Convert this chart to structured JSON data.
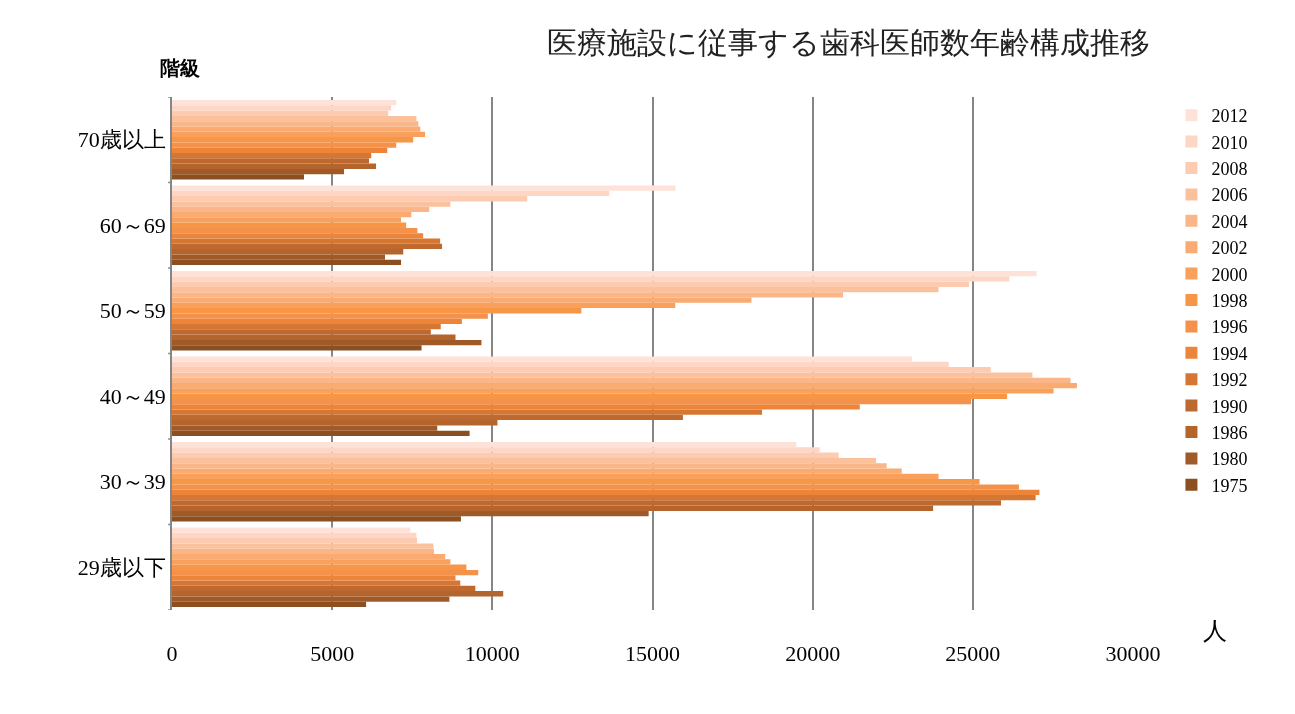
{
  "chart_data": {
    "type": "bar",
    "orientation": "horizontal",
    "title": "医療施設に従事する歯科医師数年齢構成推移",
    "xlabel": "人",
    "ylabel": "階級",
    "categories": [
      "70歳以上",
      "60～69",
      "50～59",
      "40～49",
      "30～39",
      "29歳以下"
    ],
    "series": [
      {
        "name": "1975",
        "color": "#8c4f22",
        "values": [
          4120,
          7150,
          7790,
          9290,
          9020,
          6060
        ]
      },
      {
        "name": "1980",
        "color": "#a05a28",
        "values": [
          5370,
          6650,
          9660,
          8280,
          14880,
          8660
        ]
      },
      {
        "name": "1986",
        "color": "#b4652e",
        "values": [
          6370,
          7220,
          8850,
          10160,
          23760,
          10340
        ]
      },
      {
        "name": "1990",
        "color": "#bd692f",
        "values": [
          6150,
          8430,
          8080,
          15950,
          25880,
          9470
        ]
      },
      {
        "name": "1992",
        "color": "#d57633",
        "values": [
          6220,
          8370,
          8390,
          18420,
          26960,
          9000
        ]
      },
      {
        "name": "1994",
        "color": "#ec853a",
        "values": [
          6720,
          7840,
          9050,
          21470,
          27080,
          8850
        ]
      },
      {
        "name": "1996",
        "color": "#f4924c",
        "values": [
          7000,
          7660,
          9860,
          24950,
          26440,
          9560
        ]
      },
      {
        "name": "1998",
        "color": "#f79646",
        "values": [
          7530,
          7310,
          12780,
          26070,
          25210,
          9190
        ]
      },
      {
        "name": "2000",
        "color": "#f8a05c",
        "values": [
          7900,
          7150,
          15710,
          27520,
          23930,
          8690
        ]
      },
      {
        "name": "2002",
        "color": "#f9ab72",
        "values": [
          7750,
          7470,
          18090,
          28250,
          22780,
          8530
        ]
      },
      {
        "name": "2004",
        "color": "#fab688",
        "values": [
          7690,
          8030,
          20950,
          28050,
          22310,
          8180
        ]
      },
      {
        "name": "2006",
        "color": "#fbc19d",
        "values": [
          7630,
          8690,
          23930,
          26860,
          21980,
          8160
        ]
      },
      {
        "name": "2008",
        "color": "#fccbb1",
        "values": [
          6750,
          11090,
          24880,
          25560,
          20810,
          7650
        ]
      },
      {
        "name": "2010",
        "color": "#fdd6c5",
        "values": [
          6840,
          13650,
          26140,
          24250,
          20220,
          7630
        ]
      },
      {
        "name": "2012",
        "color": "#fee2d8",
        "values": [
          7000,
          15720,
          26990,
          23100,
          19490,
          7440
        ]
      }
    ],
    "xlim": [
      0,
      30000
    ],
    "xticks": [
      0,
      5000,
      10000,
      15000,
      20000,
      25000,
      30000
    ],
    "grid": "x",
    "legend": "right"
  }
}
